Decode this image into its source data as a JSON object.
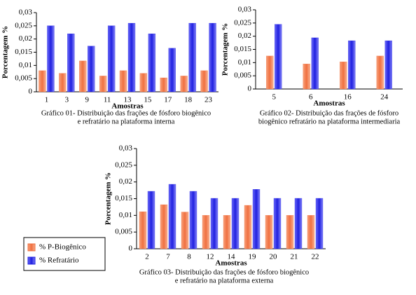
{
  "chart_data": [
    {
      "type": "bar",
      "y_label": "Porcentagem %",
      "x_label": "Amostras",
      "caption": [
        "Gráfico 01- Distribuição das frações de fósforo biogênico",
        "e  refratário na plataforma interna"
      ],
      "categories": [
        "1",
        "3",
        "9",
        "11",
        "13",
        "15",
        "17",
        "18",
        "23"
      ],
      "series": [
        {
          "color": "#f07040",
          "values": [
            0.008,
            0.007,
            0.0117,
            0.006,
            0.008,
            0.007,
            0.0053,
            0.006,
            0.008
          ]
        },
        {
          "color": "#2020e0",
          "values": [
            0.025,
            0.022,
            0.0173,
            0.025,
            0.026,
            0.022,
            0.0165,
            0.026,
            0.026
          ]
        }
      ],
      "ylim": [
        0,
        0.03
      ],
      "yticks": [
        0,
        {
          "value": 0.005,
          "label": "0,005"
        },
        {
          "value": 0.01,
          "label": "0,01"
        },
        {
          "value": 0.015,
          "label": "0,015"
        },
        {
          "value": 0.02,
          "label": "0,02"
        },
        {
          "value": 0.025,
          "label": "0,025"
        },
        {
          "value": 0.03,
          "label": "0,03"
        }
      ]
    },
    {
      "type": "bar",
      "y_label": "Porcentagem %",
      "x_label": "Amostras",
      "caption": [
        "Gráfico 02- Distribuição das frações de fósforo",
        "biogênico refratário na plataforma intermediaria"
      ],
      "categories": [
        "5",
        "6",
        "16",
        "24"
      ],
      "series": [
        {
          "color": "#f07040",
          "values": [
            0.0125,
            0.0095,
            0.0103,
            0.0125
          ]
        },
        {
          "color": "#2020e0",
          "values": [
            0.0245,
            0.0194,
            0.0183,
            0.0183
          ]
        }
      ],
      "ylim": [
        0,
        0.03
      ],
      "yticks": [
        0,
        {
          "value": 0.005,
          "label": "0,005"
        },
        {
          "value": 0.01,
          "label": "0,01"
        },
        {
          "value": 0.015,
          "label": "0,015"
        },
        {
          "value": 0.02,
          "label": "0,02"
        },
        {
          "value": 0.025,
          "label": "0,025"
        },
        {
          "value": 0.03,
          "label": "0,03"
        }
      ]
    },
    {
      "type": "bar",
      "y_label": "Porcentagem %",
      "x_label": "Amostras",
      "caption": [
        "Gráfico 03- Distribuição das frações de fósforo biogênico",
        "e refratário na plataforma externa"
      ],
      "categories": [
        "2",
        "7",
        "8",
        "12",
        "14",
        "19",
        "20",
        "21",
        "22"
      ],
      "series": [
        {
          "name": "% P-Biogênico",
          "color": "#f07040",
          "values": [
            0.0111,
            0.0132,
            0.011,
            0.01,
            0.01,
            0.013,
            0.01,
            0.01,
            0.01
          ]
        },
        {
          "name": "% Refratário",
          "color": "#2020e0",
          "values": [
            0.0172,
            0.0193,
            0.0172,
            0.0151,
            0.0151,
            0.0178,
            0.0151,
            0.0151,
            0.0151
          ]
        }
      ],
      "ylim": [
        0,
        0.03
      ],
      "yticks": [
        0,
        {
          "value": 0.005,
          "label": "0,005"
        },
        {
          "value": 0.01,
          "label": "0,01"
        },
        {
          "value": 0.015,
          "label": "0,015"
        },
        {
          "value": 0.02,
          "label": "0,02"
        },
        {
          "value": 0.025,
          "label": "0,025"
        },
        {
          "value": 0.03,
          "label": "0,03"
        }
      ]
    }
  ]
}
